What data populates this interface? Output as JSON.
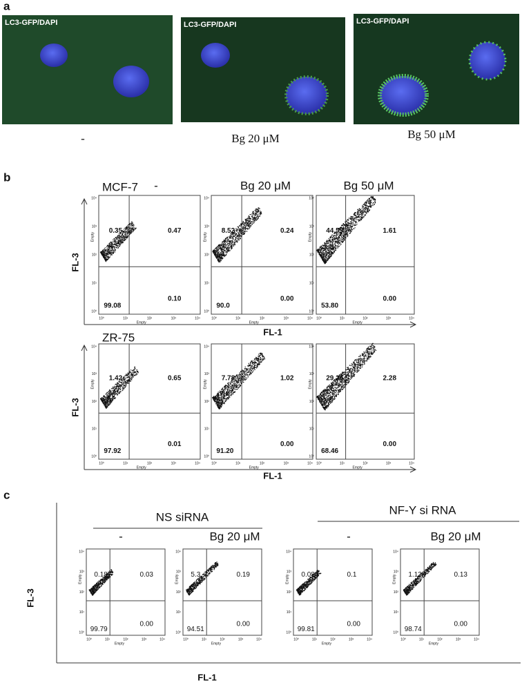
{
  "panel_a": {
    "label": "a",
    "images": [
      {
        "overlay": "LC3-GFP/DAPI",
        "caption": "-"
      },
      {
        "overlay": "LC3-GFP/DAPI",
        "caption": "Bg 20 μM"
      },
      {
        "overlay": "LC3-GFP/DAPI",
        "caption": "Bg 50 μM"
      }
    ]
  },
  "panel_b": {
    "label": "b",
    "x_axis": "FL-1",
    "y_axis": "FL-3",
    "plot_axis_label": "Empty",
    "tick_labels": [
      "10⁰",
      "10¹",
      "10²",
      "10³",
      "10⁴"
    ],
    "rows": [
      {
        "cell_line": "MCF-7",
        "plots": [
          {
            "condition": "-",
            "upper_left": "0.35",
            "upper_right": "0.47",
            "lower_left": "99.08",
            "lower_right": "0.10"
          },
          {
            "condition": "Bg 20 μM",
            "upper_left": "8.52",
            "upper_right": "0.24",
            "lower_left": "90.0",
            "lower_right": "0.00"
          },
          {
            "condition": "Bg 50 μM",
            "upper_left": "44.59",
            "upper_right": "1.61",
            "lower_left": "53.80",
            "lower_right": "0.00"
          }
        ]
      },
      {
        "cell_line": "ZR-75",
        "plots": [
          {
            "upper_left": "1.42",
            "upper_right": "0.65",
            "lower_left": "97.92",
            "lower_right": "0.01"
          },
          {
            "upper_left": "7.78",
            "upper_right": "1.02",
            "lower_left": "91.20",
            "lower_right": "0.00"
          },
          {
            "upper_left": "29.26",
            "upper_right": "2.28",
            "lower_left": "68.46",
            "lower_right": "0.00"
          }
        ]
      }
    ]
  },
  "panel_c": {
    "label": "c",
    "x_axis": "FL-1",
    "y_axis": "FL-3",
    "groups": [
      {
        "name": "NS siRNA",
        "plots": [
          {
            "condition": "-",
            "upper_left": "0.18",
            "upper_right": "0.03",
            "lower_left": "99.79",
            "lower_right": "0.00"
          },
          {
            "condition": "Bg 20 μM",
            "upper_left": "5.3",
            "upper_right": "0.19",
            "lower_left": "94.51",
            "lower_right": "0.00"
          }
        ]
      },
      {
        "name": "NF-Y si RNA",
        "plots": [
          {
            "condition": "-",
            "upper_left": "0.08",
            "upper_right": "0.1",
            "lower_left": "99.81",
            "lower_right": "0.00"
          },
          {
            "condition": "Bg 20 μM",
            "upper_left": "1.13",
            "upper_right": "0.13",
            "lower_left": "98.74",
            "lower_right": "0.00"
          }
        ]
      }
    ]
  }
}
